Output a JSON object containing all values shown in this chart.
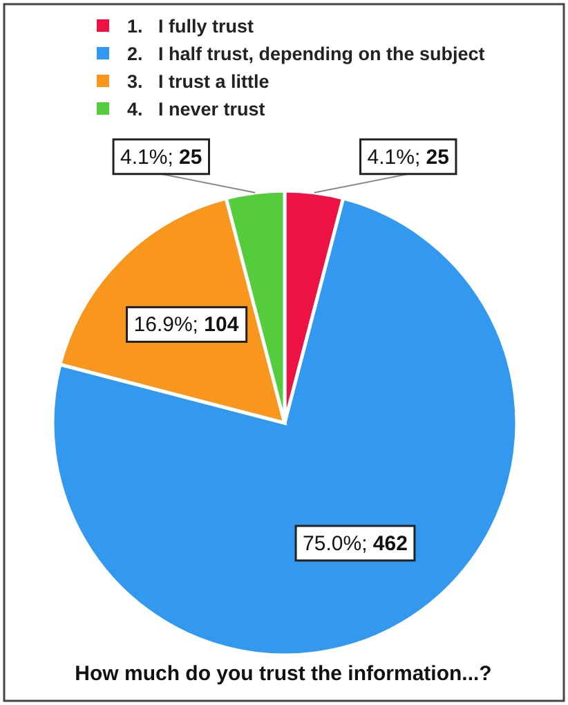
{
  "chart_data": {
    "type": "pie",
    "title": "How much do you trust the information...?",
    "categories": [
      "1.   I fully trust",
      "2.   I half trust, depending on the subject",
      "3.   I trust a little",
      "4.   I never trust"
    ],
    "values": [
      25,
      462,
      104,
      25
    ],
    "value_labels": [
      "4.1%; 25",
      "75.0%; 462",
      "16.9%; 104",
      "4.1%; 25"
    ],
    "colors": [
      "#ee1144",
      "#3399ee",
      "#f8961e",
      "#55cc3b"
    ],
    "legend": "top left"
  }
}
